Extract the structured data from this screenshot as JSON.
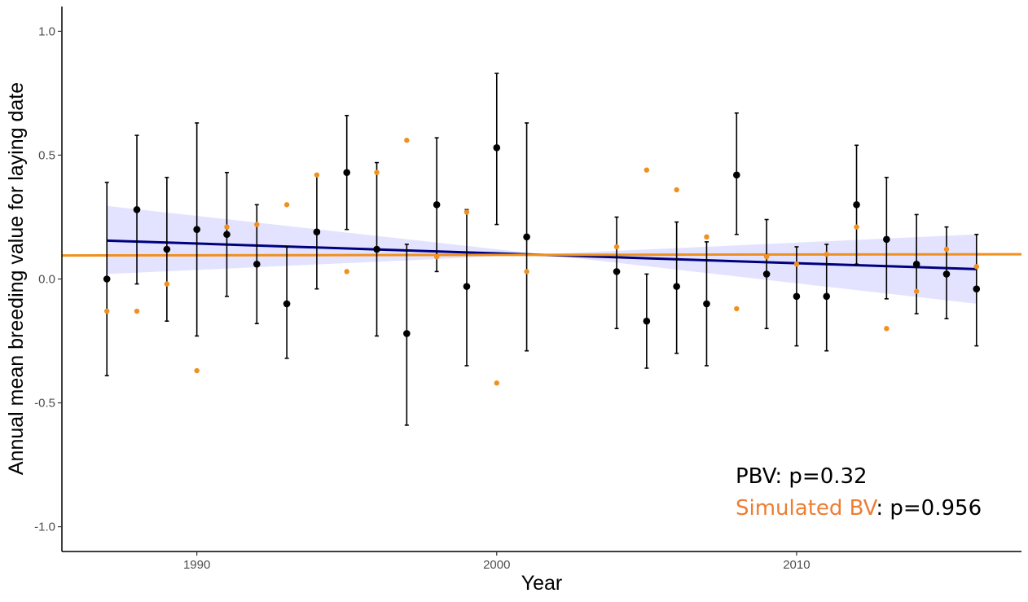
{
  "chart_data": {
    "type": "scatter",
    "xlabel": "Year",
    "ylabel": "Annual mean breeding value for laying date",
    "xlim": [
      1985.5,
      2017.5
    ],
    "ylim": [
      -1.1,
      1.1
    ],
    "x_ticks": [
      1990,
      2000,
      2010
    ],
    "y_ticks": [
      1.0,
      0.5,
      0.0,
      -0.5,
      -1.0
    ],
    "y_tick_labels": [
      "1.0",
      "0.5",
      "0.0",
      "-0.5",
      "-1.0"
    ],
    "grid": false,
    "series": [
      {
        "color": "#000000",
        "points": [
          {
            "x": 1987,
            "y": 0.0,
            "lo": -0.39,
            "hi": 0.39
          },
          {
            "x": 1988,
            "y": 0.28,
            "lo": -0.02,
            "hi": 0.58
          },
          {
            "x": 1989,
            "y": 0.12,
            "lo": -0.17,
            "hi": 0.41
          },
          {
            "x": 1990,
            "y": 0.2,
            "lo": -0.23,
            "hi": 0.63
          },
          {
            "x": 1991,
            "y": 0.18,
            "lo": -0.07,
            "hi": 0.43
          },
          {
            "x": 1992,
            "y": 0.06,
            "lo": -0.18,
            "hi": 0.3
          },
          {
            "x": 1993,
            "y": -0.1,
            "lo": -0.32,
            "hi": 0.13
          },
          {
            "x": 1994,
            "y": 0.19,
            "lo": -0.04,
            "hi": 0.42
          },
          {
            "x": 1995,
            "y": 0.43,
            "lo": 0.2,
            "hi": 0.66
          },
          {
            "x": 1996,
            "y": 0.12,
            "lo": -0.23,
            "hi": 0.47
          },
          {
            "x": 1997,
            "y": -0.22,
            "lo": -0.59,
            "hi": 0.14
          },
          {
            "x": 1998,
            "y": 0.3,
            "lo": 0.03,
            "hi": 0.57
          },
          {
            "x": 1999,
            "y": -0.03,
            "lo": -0.35,
            "hi": 0.28
          },
          {
            "x": 2000,
            "y": 0.53,
            "lo": 0.22,
            "hi": 0.83
          },
          {
            "x": 2001,
            "y": 0.17,
            "lo": -0.29,
            "hi": 0.63
          },
          {
            "x": 2004,
            "y": 0.03,
            "lo": -0.2,
            "hi": 0.25
          },
          {
            "x": 2005,
            "y": -0.17,
            "lo": -0.36,
            "hi": 0.02
          },
          {
            "x": 2006,
            "y": -0.03,
            "lo": -0.3,
            "hi": 0.23
          },
          {
            "x": 2007,
            "y": -0.1,
            "lo": -0.35,
            "hi": 0.15
          },
          {
            "x": 2008,
            "y": 0.42,
            "lo": 0.18,
            "hi": 0.67
          },
          {
            "x": 2009,
            "y": 0.02,
            "lo": -0.2,
            "hi": 0.24
          },
          {
            "x": 2010,
            "y": -0.07,
            "lo": -0.27,
            "hi": 0.13
          },
          {
            "x": 2011,
            "y": -0.07,
            "lo": -0.29,
            "hi": 0.14
          },
          {
            "x": 2012,
            "y": 0.3,
            "lo": 0.06,
            "hi": 0.54
          },
          {
            "x": 2013,
            "y": 0.16,
            "lo": -0.08,
            "hi": 0.41
          },
          {
            "x": 2014,
            "y": 0.06,
            "lo": -0.14,
            "hi": 0.26
          },
          {
            "x": 2015,
            "y": 0.02,
            "lo": -0.16,
            "hi": 0.21
          },
          {
            "x": 2016,
            "y": -0.04,
            "lo": -0.27,
            "hi": 0.18
          }
        ],
        "trend": {
          "x": [
            1987,
            2016
          ],
          "y": [
            0.155,
            0.04
          ],
          "color": "#00007f"
        },
        "ci_band": {
          "x": [
            1987,
            2001.5,
            2016
          ],
          "lo": [
            0.02,
            0.1,
            -0.1
          ],
          "hi": [
            0.295,
            0.1,
            0.18
          ],
          "color": "#dcdcff"
        }
      },
      {
        "color": "#f0901e",
        "points": [
          {
            "x": 1987,
            "y": -0.13
          },
          {
            "x": 1988,
            "y": -0.13
          },
          {
            "x": 1989,
            "y": -0.02
          },
          {
            "x": 1990,
            "y": -0.37
          },
          {
            "x": 1991,
            "y": 0.21
          },
          {
            "x": 1992,
            "y": 0.22
          },
          {
            "x": 1993,
            "y": 0.3
          },
          {
            "x": 1994,
            "y": 0.42
          },
          {
            "x": 1995,
            "y": 0.03
          },
          {
            "x": 1996,
            "y": 0.43
          },
          {
            "x": 1997,
            "y": 0.56
          },
          {
            "x": 1998,
            "y": 0.09
          },
          {
            "x": 1999,
            "y": 0.27
          },
          {
            "x": 2000,
            "y": -0.42
          },
          {
            "x": 2001,
            "y": 0.03
          },
          {
            "x": 2004,
            "y": 0.13
          },
          {
            "x": 2005,
            "y": 0.44
          },
          {
            "x": 2006,
            "y": 0.36
          },
          {
            "x": 2007,
            "y": 0.17
          },
          {
            "x": 2008,
            "y": -0.12
          },
          {
            "x": 2009,
            "y": 0.09
          },
          {
            "x": 2010,
            "y": 0.06
          },
          {
            "x": 2011,
            "y": 0.1
          },
          {
            "x": 2012,
            "y": 0.21
          },
          {
            "x": 2013,
            "y": -0.2
          },
          {
            "x": 2014,
            "y": -0.05
          },
          {
            "x": 2015,
            "y": 0.12
          },
          {
            "x": 2016,
            "y": 0.05
          }
        ],
        "trend": {
          "x": [
            1985.5,
            2017.5
          ],
          "y": [
            0.095,
            0.1
          ],
          "color": "#f0901e"
        }
      }
    ],
    "annotations": [
      {
        "label": "PBV",
        "label_color": "#000000",
        "suffix": ": p=0.32"
      },
      {
        "label": "Simulated BV",
        "label_color": "#ed7d31",
        "suffix": ": p=0.956"
      }
    ]
  }
}
